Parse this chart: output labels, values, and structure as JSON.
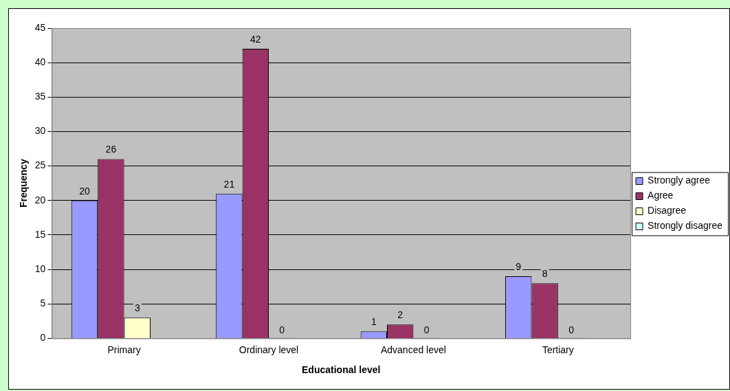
{
  "chart_data": {
    "type": "bar",
    "xlabel": "Educational level",
    "ylabel": "Frequency",
    "categories": [
      "Primary",
      "Ordinary level",
      "Advanced level",
      "Tertiary"
    ],
    "series": [
      {
        "name": "Strongly agree",
        "color": "#9999ff",
        "values": [
          20,
          21,
          1,
          9
        ]
      },
      {
        "name": "Agree",
        "color": "#993366",
        "values": [
          26,
          42,
          2,
          8
        ]
      },
      {
        "name": "Disagree",
        "color": "#ffffcc",
        "values": [
          3,
          0,
          0,
          0
        ]
      },
      {
        "name": "Strongly disagree",
        "color": "#ccffff",
        "values": [
          null,
          null,
          null,
          null
        ]
      }
    ],
    "ylim": [
      0,
      45
    ],
    "yticks": [
      0,
      5,
      10,
      15,
      20,
      25,
      30,
      35,
      40,
      45
    ],
    "grid": "y",
    "legend": "right",
    "data_labels": true
  }
}
